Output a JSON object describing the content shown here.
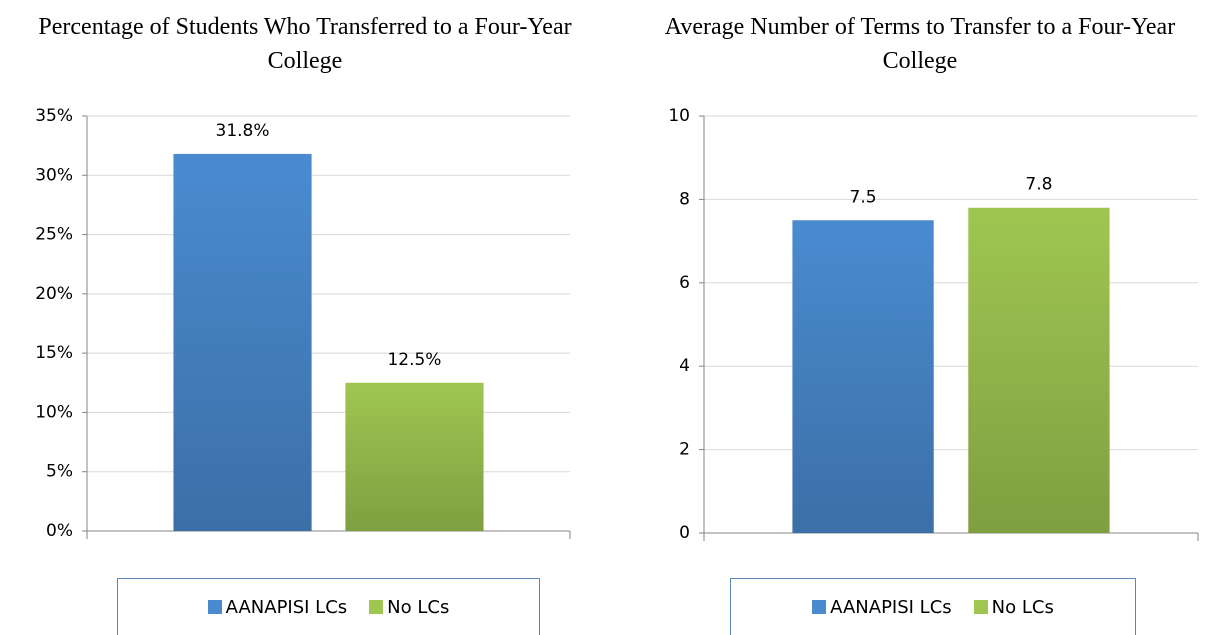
{
  "chart_data": [
    {
      "type": "bar",
      "title": "Percentage of Students Who Transferred to a Four-Year College",
      "categories": [
        null
      ],
      "series": [
        {
          "name": "AANAPISI LCs",
          "color": "#4a8bd0",
          "values": [
            31.8
          ],
          "value_labels": [
            "31.8%"
          ]
        },
        {
          "name": "No LCs",
          "color": "#9fc651",
          "values": [
            12.5
          ],
          "value_labels": [
            "12.5%"
          ]
        }
      ],
      "ylim": [
        0,
        35
      ],
      "yticks": [
        {
          "value": 0,
          "label": "0%"
        },
        {
          "value": 5,
          "label": "5%"
        },
        {
          "value": 10,
          "label": "10%"
        },
        {
          "value": 15,
          "label": "15%"
        },
        {
          "value": 20,
          "label": "20%"
        },
        {
          "value": 25,
          "label": "25%"
        },
        {
          "value": 30,
          "label": "30%"
        },
        {
          "value": 35,
          "label": "35%"
        }
      ],
      "grid": true
    },
    {
      "type": "bar",
      "title": "Average Number of Terms to Transfer to a Four-Year College",
      "categories": [
        null
      ],
      "series": [
        {
          "name": "AANAPISI LCs",
          "color": "#4a8bd0",
          "values": [
            7.5
          ]
        },
        {
          "name": "No LCs",
          "color": "#9fc651",
          "values": [
            7.8
          ]
        }
      ],
      "ylim": [
        0,
        10
      ],
      "yticks": [
        0,
        2,
        4,
        6,
        8,
        10
      ],
      "grid": true
    }
  ]
}
